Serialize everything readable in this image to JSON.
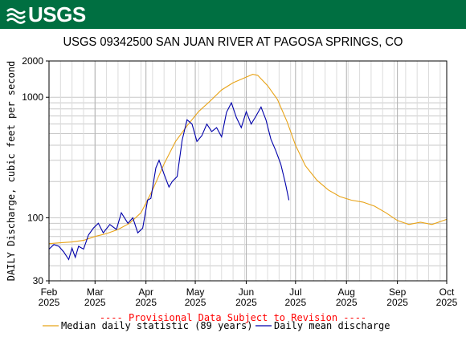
{
  "header": {
    "logo_text": "USGS",
    "color": "#006f41"
  },
  "chart_data": {
    "type": "line",
    "title": "USGS 09342500 SAN JUAN RIVER AT PAGOSA SPRINGS, CO",
    "ylabel": "DAILY Discharge, cubic feet per second",
    "y_scale": "log",
    "ylim": [
      30,
      2000
    ],
    "y_ticks": [
      30,
      100,
      1000,
      2000
    ],
    "xlim": [
      "2025-02-01",
      "2025-10-01"
    ],
    "x_ticks": [
      {
        "date": "2025-02-01",
        "month": "Feb",
        "year": "2025"
      },
      {
        "date": "2025-03-01",
        "month": "Mar",
        "year": "2025"
      },
      {
        "date": "2025-04-01",
        "month": "Apr",
        "year": "2025"
      },
      {
        "date": "2025-05-01",
        "month": "May",
        "year": "2025"
      },
      {
        "date": "2025-06-01",
        "month": "Jun",
        "year": "2025"
      },
      {
        "date": "2025-07-01",
        "month": "Jul",
        "year": "2025"
      },
      {
        "date": "2025-08-01",
        "month": "Aug",
        "year": "2025"
      },
      {
        "date": "2025-09-01",
        "month": "Sep",
        "year": "2025"
      },
      {
        "date": "2025-10-01",
        "month": "Oct",
        "year": "2025"
      }
    ],
    "grid": true,
    "provisional_note": "---- Provisional Data Subject to Revision ----",
    "series": [
      {
        "name": "Median daily statistic (89 years)",
        "color": "#e8a317",
        "points": [
          [
            "2025-02-01",
            61
          ],
          [
            "2025-02-08",
            62
          ],
          [
            "2025-02-15",
            63
          ],
          [
            "2025-02-22",
            65
          ],
          [
            "2025-03-01",
            70
          ],
          [
            "2025-03-08",
            74
          ],
          [
            "2025-03-15",
            80
          ],
          [
            "2025-03-22",
            90
          ],
          [
            "2025-03-29",
            110
          ],
          [
            "2025-04-05",
            170
          ],
          [
            "2025-04-12",
            280
          ],
          [
            "2025-04-19",
            430
          ],
          [
            "2025-04-26",
            580
          ],
          [
            "2025-05-03",
            760
          ],
          [
            "2025-05-10",
            930
          ],
          [
            "2025-05-17",
            1150
          ],
          [
            "2025-05-24",
            1320
          ],
          [
            "2025-05-31",
            1450
          ],
          [
            "2025-06-05",
            1550
          ],
          [
            "2025-06-08",
            1520
          ],
          [
            "2025-06-14",
            1250
          ],
          [
            "2025-06-20",
            960
          ],
          [
            "2025-06-26",
            620
          ],
          [
            "2025-07-01",
            400
          ],
          [
            "2025-07-07",
            270
          ],
          [
            "2025-07-14",
            205
          ],
          [
            "2025-07-21",
            170
          ],
          [
            "2025-07-28",
            150
          ],
          [
            "2025-08-04",
            140
          ],
          [
            "2025-08-11",
            135
          ],
          [
            "2025-08-18",
            125
          ],
          [
            "2025-08-25",
            110
          ],
          [
            "2025-09-01",
            95
          ],
          [
            "2025-09-08",
            88
          ],
          [
            "2025-09-15",
            92
          ],
          [
            "2025-09-22",
            88
          ],
          [
            "2025-10-01",
            97
          ]
        ]
      },
      {
        "name": "Daily mean discharge",
        "color": "#0000aa",
        "points": [
          [
            "2025-02-01",
            55
          ],
          [
            "2025-02-04",
            60
          ],
          [
            "2025-02-07",
            58
          ],
          [
            "2025-02-10",
            52
          ],
          [
            "2025-02-13",
            45
          ],
          [
            "2025-02-15",
            56
          ],
          [
            "2025-02-17",
            47
          ],
          [
            "2025-02-19",
            58
          ],
          [
            "2025-02-22",
            55
          ],
          [
            "2025-02-25",
            72
          ],
          [
            "2025-02-28",
            82
          ],
          [
            "2025-03-03",
            90
          ],
          [
            "2025-03-06",
            75
          ],
          [
            "2025-03-10",
            88
          ],
          [
            "2025-03-14",
            80
          ],
          [
            "2025-03-17",
            110
          ],
          [
            "2025-03-21",
            90
          ],
          [
            "2025-03-24",
            100
          ],
          [
            "2025-03-27",
            75
          ],
          [
            "2025-03-30",
            82
          ],
          [
            "2025-04-02",
            140
          ],
          [
            "2025-04-04",
            145
          ],
          [
            "2025-04-07",
            260
          ],
          [
            "2025-04-09",
            300
          ],
          [
            "2025-04-12",
            230
          ],
          [
            "2025-04-15",
            180
          ],
          [
            "2025-04-17",
            200
          ],
          [
            "2025-04-20",
            220
          ],
          [
            "2025-04-23",
            440
          ],
          [
            "2025-04-26",
            650
          ],
          [
            "2025-04-29",
            600
          ],
          [
            "2025-05-02",
            430
          ],
          [
            "2025-05-05",
            480
          ],
          [
            "2025-05-08",
            600
          ],
          [
            "2025-05-11",
            520
          ],
          [
            "2025-05-14",
            560
          ],
          [
            "2025-05-17",
            470
          ],
          [
            "2025-05-20",
            750
          ],
          [
            "2025-05-23",
            900
          ],
          [
            "2025-05-26",
            680
          ],
          [
            "2025-05-29",
            560
          ],
          [
            "2025-06-01",
            760
          ],
          [
            "2025-06-04",
            600
          ],
          [
            "2025-06-07",
            700
          ],
          [
            "2025-06-10",
            830
          ],
          [
            "2025-06-13",
            650
          ],
          [
            "2025-06-16",
            450
          ],
          [
            "2025-06-19",
            360
          ],
          [
            "2025-06-22",
            280
          ],
          [
            "2025-06-25",
            190
          ],
          [
            "2025-06-27",
            140
          ]
        ]
      }
    ]
  }
}
